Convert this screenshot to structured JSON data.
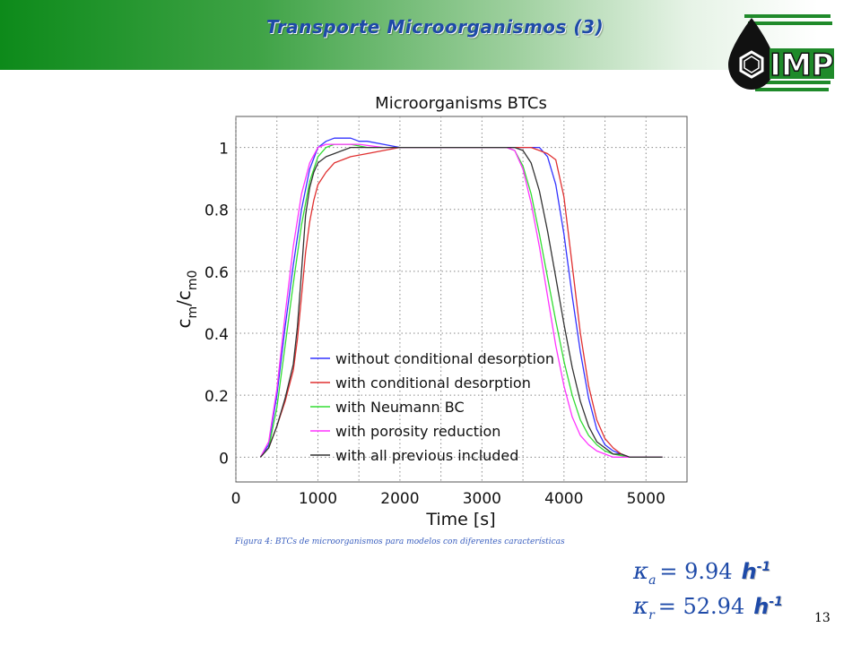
{
  "slide": {
    "title": "Transporte Microorganismos (3)",
    "caption": "Figura 4: BTCs de microorganismos para modelos con diferentes características",
    "page_number": "13",
    "logo_text": "IMP"
  },
  "equations": [
    {
      "symbol": "κ",
      "subscript": "a",
      "value": "= 9.94",
      "unit": "h",
      "unit_exp": "-1"
    },
    {
      "symbol": "κ",
      "subscript": "r",
      "value": "= 52.94",
      "unit": "h",
      "unit_exp": "-1"
    }
  ],
  "colors": {
    "title": "#1e4aa8",
    "header_green": "#0d8a1a"
  },
  "chart_data": {
    "type": "line",
    "title": "Microorganisms BTCs",
    "xlabel": "Time [s]",
    "ylabel_parts": {
      "c1": "c",
      "sub1": "m",
      "slash": "/",
      "c2": "c",
      "sub2": "m0"
    },
    "xlim": [
      0,
      5500
    ],
    "ylim": [
      -0.08,
      1.1
    ],
    "xticks": [
      0,
      1000,
      2000,
      3000,
      4000,
      5000
    ],
    "yticks": [
      0,
      0.2,
      0.4,
      0.6,
      0.8,
      1
    ],
    "xtick_labels": [
      "0",
      "1000",
      "2000",
      "3000",
      "4000",
      "5000"
    ],
    "ytick_labels": [
      "0",
      "0.2",
      "0.4",
      "0.6",
      "0.8",
      "1"
    ],
    "grid": true,
    "legend_position": "bottom-right",
    "series": [
      {
        "name": "without conditional desorption",
        "color": "#3333ff",
        "x": [
          300,
          400,
          500,
          600,
          700,
          800,
          900,
          1000,
          1100,
          1200,
          1300,
          1400,
          1500,
          1600,
          1800,
          2000,
          2200,
          2500,
          3000,
          3400,
          3600,
          3700,
          3800,
          3900,
          4000,
          4100,
          4200,
          4300,
          4400,
          4500,
          4600,
          4700,
          4800,
          5000,
          5200
        ],
        "y": [
          0,
          0.04,
          0.2,
          0.42,
          0.62,
          0.8,
          0.93,
          1.0,
          1.02,
          1.03,
          1.03,
          1.03,
          1.02,
          1.02,
          1.01,
          1.0,
          1.0,
          1.0,
          1.0,
          1.0,
          1.0,
          1.0,
          0.97,
          0.88,
          0.72,
          0.52,
          0.34,
          0.19,
          0.09,
          0.04,
          0.02,
          0.01,
          0,
          0,
          0
        ]
      },
      {
        "name": "with conditional desorption",
        "color": "#e03030",
        "x": [
          300,
          400,
          500,
          600,
          700,
          750,
          800,
          850,
          900,
          950,
          1000,
          1100,
          1200,
          1300,
          1400,
          1600,
          1800,
          2000,
          2500,
          3000,
          3400,
          3500,
          3600,
          3700,
          3800,
          3900,
          4000,
          4100,
          4200,
          4300,
          4400,
          4500,
          4600,
          4700,
          4800,
          5000,
          5200
        ],
        "y": [
          0,
          0.03,
          0.1,
          0.18,
          0.28,
          0.38,
          0.52,
          0.66,
          0.76,
          0.83,
          0.88,
          0.92,
          0.95,
          0.96,
          0.97,
          0.98,
          0.99,
          1.0,
          1.0,
          1.0,
          1.0,
          1.0,
          1.0,
          0.99,
          0.98,
          0.96,
          0.84,
          0.62,
          0.4,
          0.23,
          0.12,
          0.06,
          0.03,
          0.01,
          0,
          0,
          0
        ]
      },
      {
        "name": "with Neumann BC",
        "color": "#33dd33",
        "x": [
          300,
          400,
          500,
          600,
          700,
          800,
          900,
          1000,
          1100,
          1200,
          1300,
          1400,
          1600,
          1800,
          2000,
          2500,
          3000,
          3300,
          3400,
          3500,
          3600,
          3700,
          3800,
          3900,
          4000,
          4100,
          4200,
          4300,
          4400,
          4500,
          4600,
          4800,
          5000,
          5200
        ],
        "y": [
          0,
          0.03,
          0.16,
          0.36,
          0.56,
          0.75,
          0.89,
          0.97,
          1.0,
          1.01,
          1.01,
          1.01,
          1.0,
          1.0,
          1.0,
          1.0,
          1.0,
          1.0,
          0.99,
          0.94,
          0.85,
          0.72,
          0.58,
          0.44,
          0.31,
          0.2,
          0.12,
          0.07,
          0.04,
          0.02,
          0.01,
          0,
          0,
          0
        ]
      },
      {
        "name": "with porosity reduction",
        "color": "#ff33ff",
        "x": [
          300,
          400,
          500,
          600,
          700,
          800,
          900,
          1000,
          1100,
          1200,
          1300,
          1500,
          1800,
          2000,
          2500,
          3000,
          3300,
          3400,
          3500,
          3600,
          3700,
          3800,
          3900,
          4000,
          4100,
          4200,
          4300,
          4400,
          4500,
          4600,
          4800,
          5000,
          5200
        ],
        "y": [
          0,
          0.05,
          0.22,
          0.46,
          0.68,
          0.85,
          0.95,
          1.0,
          1.01,
          1.01,
          1.01,
          1.01,
          1.0,
          1.0,
          1.0,
          1.0,
          1.0,
          0.99,
          0.93,
          0.82,
          0.68,
          0.52,
          0.36,
          0.23,
          0.13,
          0.07,
          0.04,
          0.02,
          0.01,
          0,
          0,
          0,
          0
        ]
      },
      {
        "name": "with all previous included",
        "color": "#333333",
        "x": [
          300,
          400,
          500,
          600,
          700,
          750,
          800,
          850,
          900,
          950,
          1000,
          1100,
          1200,
          1300,
          1400,
          1500,
          1600,
          1800,
          2000,
          2500,
          3000,
          3300,
          3400,
          3500,
          3600,
          3700,
          3800,
          3900,
          4000,
          4100,
          4200,
          4300,
          4400,
          4500,
          4600,
          4700,
          4800,
          5000,
          5200
        ],
        "y": [
          0,
          0.03,
          0.1,
          0.19,
          0.3,
          0.42,
          0.6,
          0.78,
          0.87,
          0.92,
          0.95,
          0.97,
          0.98,
          0.99,
          1.0,
          1.0,
          1.0,
          1.0,
          1.0,
          1.0,
          1.0,
          1.0,
          1.0,
          0.99,
          0.95,
          0.86,
          0.73,
          0.58,
          0.43,
          0.29,
          0.18,
          0.1,
          0.05,
          0.03,
          0.01,
          0.01,
          0,
          0,
          0
        ]
      }
    ]
  }
}
